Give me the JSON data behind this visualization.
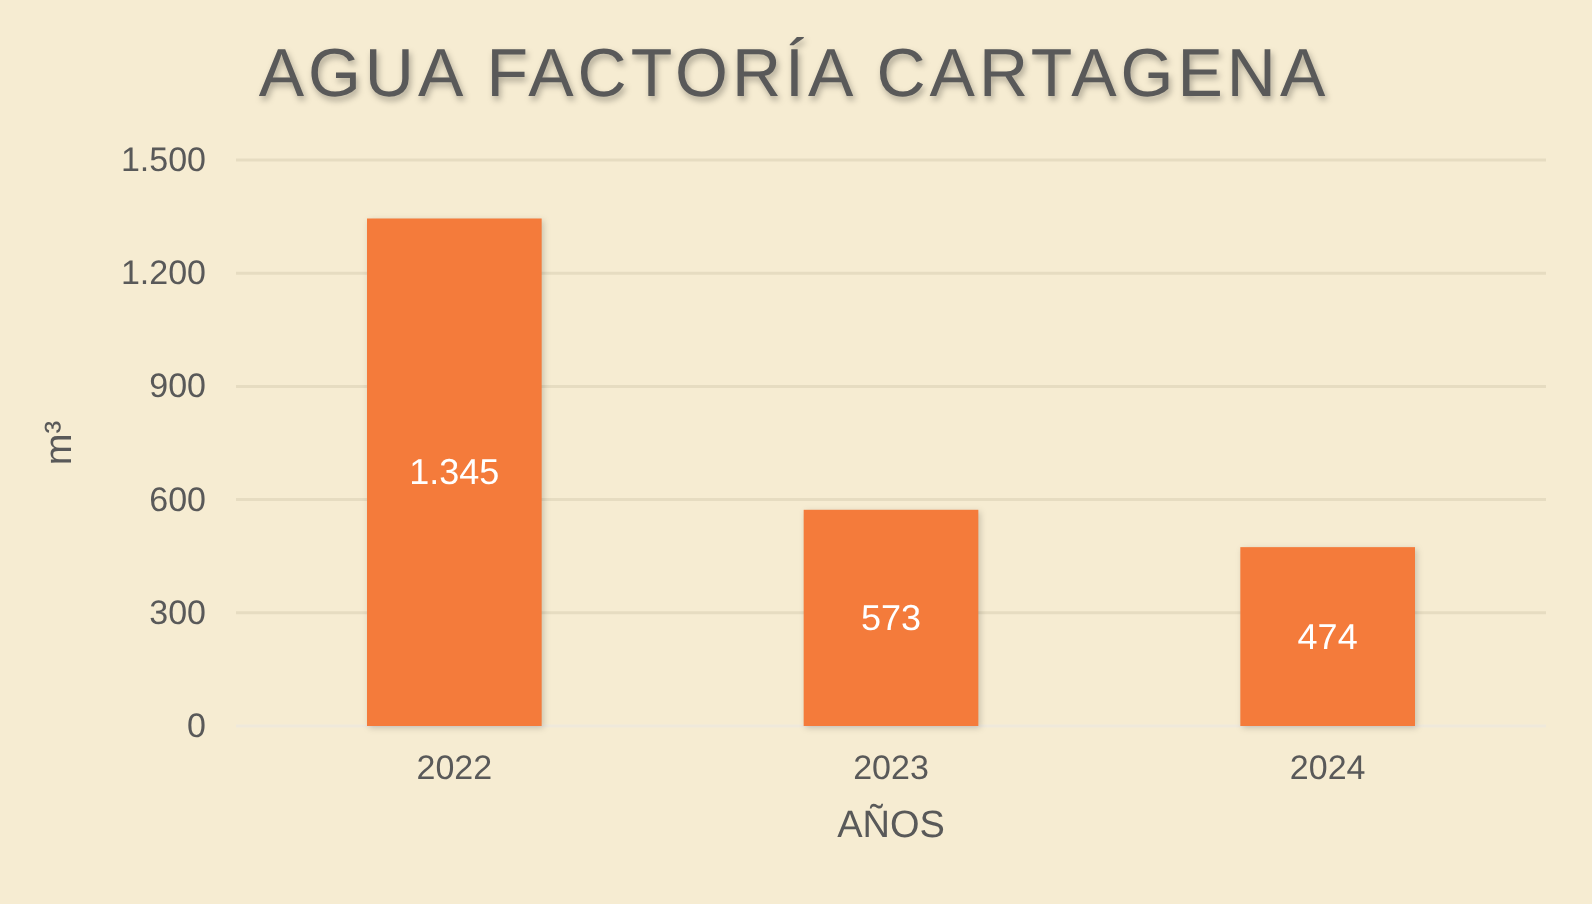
{
  "chart_data": {
    "type": "bar",
    "title": "AGUA FACTORÍA CARTAGENA",
    "xlabel": "AÑOS",
    "ylabel": "m³",
    "categories": [
      "2022",
      "2023",
      "2024"
    ],
    "values": [
      1345,
      573,
      474
    ],
    "color": "#f47b3b",
    "value_labels": [
      "1.345",
      "573",
      "474"
    ],
    "ylim": [
      0,
      1500
    ],
    "yticks": [
      0,
      300,
      600,
      900,
      {
        "value": 1200,
        "label": "1.200"
      },
      {
        "value": 1500,
        "label": "1.500"
      }
    ],
    "grid": "y"
  }
}
